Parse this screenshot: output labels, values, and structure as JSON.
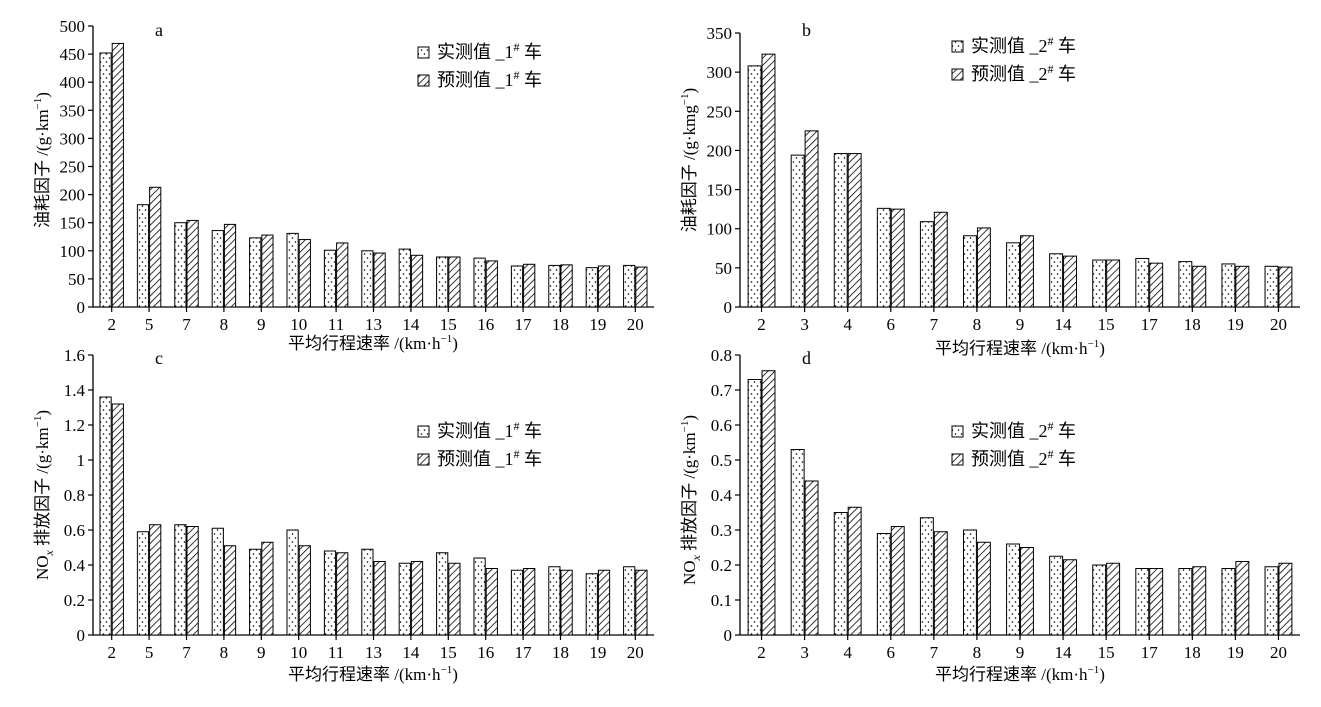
{
  "chart_data": [
    {
      "panel": "a",
      "type": "bar",
      "categories": [
        "2",
        "5",
        "7",
        "8",
        "9",
        "10",
        "11",
        "13",
        "14",
        "15",
        "16",
        "17",
        "18",
        "19",
        "20"
      ],
      "series": [
        {
          "name": "实测值 _1# 车",
          "values": [
            452,
            182,
            150,
            136,
            123,
            131,
            101,
            100,
            103,
            89,
            87,
            73,
            74,
            70,
            74
          ]
        },
        {
          "name": "预测值 _1# 车",
          "values": [
            469,
            213,
            154,
            147,
            128,
            120,
            114,
            96,
            92,
            89,
            82,
            76,
            75,
            73,
            71
          ]
        }
      ],
      "ylabel": "油耗因子 /(g·km⁻¹)",
      "xlabel": "平均行程速率 /(km·h⁻¹)",
      "ylim": [
        0,
        500
      ],
      "yticks": [
        0,
        50,
        100,
        150,
        200,
        250,
        300,
        350,
        400,
        450,
        500
      ]
    },
    {
      "panel": "b",
      "type": "bar",
      "categories": [
        "2",
        "3",
        "4",
        "6",
        "7",
        "8",
        "9",
        "14",
        "15",
        "17",
        "18",
        "19",
        "20"
      ],
      "series": [
        {
          "name": "实测值 _2# 车",
          "values": [
            308,
            194,
            196,
            126,
            109,
            91,
            82,
            68,
            60,
            62,
            58,
            55,
            52
          ]
        },
        {
          "name": "预测值 _2# 车",
          "values": [
            323,
            225,
            196,
            125,
            121,
            101,
            91,
            65,
            60,
            56,
            52,
            52,
            51
          ]
        }
      ],
      "ylabel": "油耗因子 /(g·kmg⁻¹)",
      "xlabel": "平均行程速率 /(km·h⁻¹)",
      "ylim": [
        0,
        350
      ],
      "yticks": [
        0,
        50,
        100,
        150,
        200,
        250,
        300,
        350
      ]
    },
    {
      "panel": "c",
      "type": "bar",
      "categories": [
        "2",
        "5",
        "7",
        "8",
        "9",
        "10",
        "11",
        "13",
        "14",
        "15",
        "16",
        "17",
        "18",
        "19",
        "20"
      ],
      "series": [
        {
          "name": "实测值 _1# 车",
          "values": [
            1.36,
            0.59,
            0.63,
            0.61,
            0.49,
            0.6,
            0.48,
            0.49,
            0.41,
            0.47,
            0.44,
            0.37,
            0.39,
            0.35,
            0.39
          ]
        },
        {
          "name": "预测值 _1# 车",
          "values": [
            1.32,
            0.63,
            0.62,
            0.51,
            0.53,
            0.51,
            0.47,
            0.42,
            0.42,
            0.41,
            0.38,
            0.38,
            0.37,
            0.37,
            0.37
          ]
        }
      ],
      "ylabel": "NOx 排放因子 /(g·km⁻¹)",
      "xlabel": "平均行程速率 /(km·h⁻¹)",
      "ylim": [
        0,
        1.6
      ],
      "yticks": [
        0,
        0.2,
        0.4,
        0.6,
        0.8,
        1.0,
        1.2,
        1.4,
        1.6
      ]
    },
    {
      "panel": "d",
      "type": "bar",
      "categories": [
        "2",
        "3",
        "4",
        "6",
        "7",
        "8",
        "9",
        "14",
        "15",
        "17",
        "18",
        "19",
        "20"
      ],
      "series": [
        {
          "name": "实测值 _2# 车",
          "values": [
            0.73,
            0.53,
            0.35,
            0.29,
            0.335,
            0.3,
            0.26,
            0.225,
            0.2,
            0.19,
            0.19,
            0.19,
            0.195
          ]
        },
        {
          "name": "预测值 _2# 车",
          "values": [
            0.755,
            0.44,
            0.365,
            0.31,
            0.295,
            0.265,
            0.25,
            0.215,
            0.205,
            0.19,
            0.195,
            0.21,
            0.205
          ]
        }
      ],
      "ylabel": "NOx 排放因子 /(g·km⁻¹)",
      "xlabel": "平均行程速率 /(km·h⁻¹)",
      "ylim": [
        0,
        0.8
      ],
      "yticks": [
        0,
        0.1,
        0.2,
        0.3,
        0.4,
        0.5,
        0.6,
        0.7,
        0.8
      ]
    }
  ],
  "legend_labels": {
    "measured_1": {
      "base": "实测值 _1",
      "sup": "#",
      "tail": " 车"
    },
    "predicted_1": {
      "base": "预测值 _1",
      "sup": "#",
      "tail": " 车"
    },
    "measured_2": {
      "base": "实测值 _2",
      "sup": "#",
      "tail": " 车"
    },
    "predicted_2": {
      "base": "预测值 _2",
      "sup": "#",
      "tail": " 车"
    }
  },
  "axis_titles": {
    "fuel_a": {
      "base": "油耗因子 /(g·km",
      "sup": "−1",
      "tail": ")"
    },
    "fuel_b": {
      "base": "油耗因子 /(g·kmg",
      "sup": "−1",
      "tail": ")"
    },
    "nox": {
      "pre": "NO",
      "sub": "x",
      "base": " 排放因子 /(g·km",
      "sup": "−1",
      "tail": ")"
    },
    "speed": {
      "base": "平均行程速率 /(km·h",
      "sup": "−1",
      "tail": ")"
    }
  },
  "colors": {
    "axis": "#000000",
    "bar_fill": "#ffffff",
    "pattern": "#000000"
  }
}
